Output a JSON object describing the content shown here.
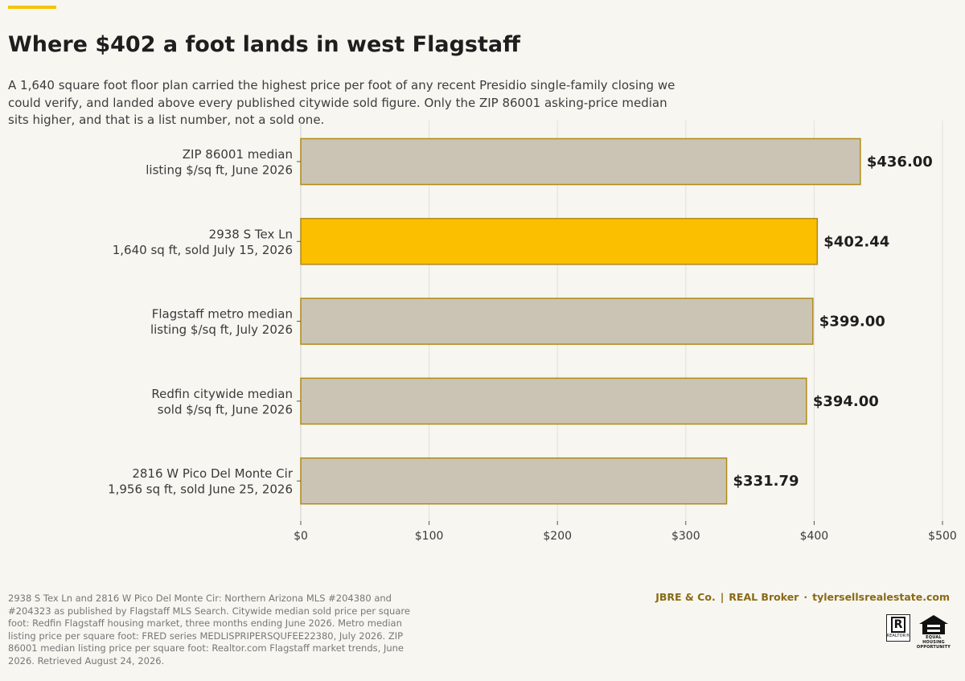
{
  "title": "Where $402 a foot lands in west Flagstaff",
  "subtitle": "A 1,640 square foot floor plan carried the highest price per foot of any recent Presidio single-family closing we could verify, and landed above every published citywide sold figure. Only the ZIP 86001 asking-price median sits higher, and that is a list number, not a sold one.",
  "colors": {
    "accent": "#f5c400",
    "highlight_bar": "#fbbf00",
    "bar": "#cbc4b4",
    "bar_border": "#b08a1a",
    "brand": "#8a6a14"
  },
  "chart_data": {
    "type": "bar",
    "orientation": "horizontal",
    "categories": [
      [
        "ZIP 86001 median",
        "listing $/sq ft, June 2026"
      ],
      [
        "2938 S Tex Ln",
        "1,640 sq ft, sold July 15, 2026"
      ],
      [
        "Flagstaff metro median",
        "listing $/sq ft, July 2026"
      ],
      [
        "Redfin citywide median",
        "sold $/sq ft, June 2026"
      ],
      [
        "2816 W Pico Del Monte Cir",
        "1,956 sq ft, sold June 25, 2026"
      ]
    ],
    "values": [
      436.0,
      402.44,
      399.0,
      394.0,
      331.79
    ],
    "data_labels": [
      "$436.00",
      "$402.44",
      "$399.00",
      "$394.00",
      "$331.79"
    ],
    "highlight_index": 1,
    "xlim": [
      0,
      500
    ],
    "xticks": [
      0,
      100,
      200,
      300,
      400,
      500
    ],
    "xtick_labels": [
      "$0",
      "$100",
      "$200",
      "$300",
      "$400",
      "$500"
    ],
    "grid": true
  },
  "footer": {
    "source": "2938 S Tex Ln and 2816 W Pico Del Monte Cir: Northern Arizona MLS #204380 and #204323 as published by Flagstaff MLS Search. Citywide median sold price per square foot: Redfin Flagstaff housing market, three months ending June 2026. Metro median listing price per square foot: FRED series MEDLISPRIPERSQUFEE22380, July 2026. ZIP 86001 median listing price per square foot: Realtor.com Flagstaff market trends, June 2026. Retrieved August 24, 2026.",
    "brand": "JBRE & Co.",
    "broker": "REAL Broker",
    "website": "tylersellsrealestate.com",
    "sep1": "|",
    "sep2": "·"
  },
  "logos": {
    "realtor_letter": "R",
    "realtor_text": "REALTOR®",
    "eho_text_1": "EQUAL HOUSING",
    "eho_text_2": "OPPORTUNITY"
  }
}
